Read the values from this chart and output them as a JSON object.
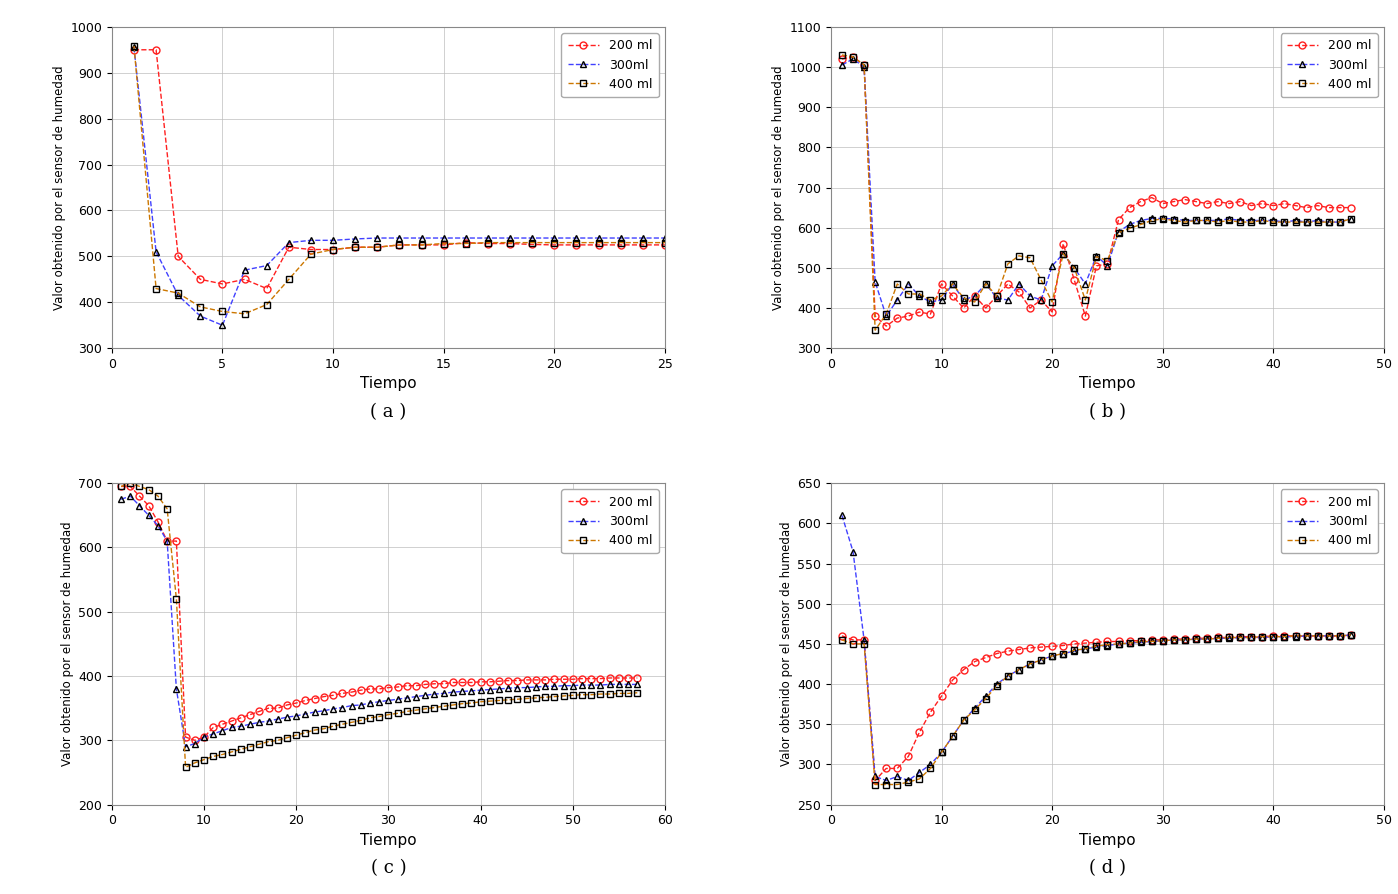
{
  "subplot_a": {
    "title": "( a )",
    "xlabel": "Tiempo",
    "ylabel": "Valor obtenido por el sensor de humedad",
    "xlim": [
      0,
      25
    ],
    "ylim": [
      300,
      1000
    ],
    "yticks": [
      300,
      400,
      500,
      600,
      700,
      800,
      900,
      1000
    ],
    "xticks": [
      0,
      5,
      10,
      15,
      20,
      25
    ],
    "series_200": [
      1,
      2,
      3,
      4,
      5,
      6,
      7,
      8,
      9,
      10,
      11,
      12,
      13,
      14,
      15,
      16,
      17,
      18,
      19,
      20,
      21,
      22,
      23,
      24,
      25
    ],
    "values_200": [
      950,
      950,
      500,
      450,
      440,
      450,
      430,
      520,
      515,
      515,
      520,
      520,
      525,
      525,
      525,
      530,
      528,
      528,
      526,
      525,
      525,
      525,
      525,
      525,
      525
    ],
    "series_300": [
      1,
      2,
      3,
      4,
      5,
      6,
      7,
      8,
      9,
      10,
      11,
      12,
      13,
      14,
      15,
      16,
      17,
      18,
      19,
      20,
      21,
      22,
      23,
      24,
      25
    ],
    "values_300": [
      955,
      510,
      415,
      370,
      350,
      470,
      480,
      530,
      535,
      535,
      538,
      540,
      540,
      540,
      540,
      540,
      540,
      540,
      540,
      540,
      540,
      540,
      540,
      540,
      540
    ],
    "series_400": [
      1,
      2,
      3,
      4,
      5,
      6,
      7,
      8,
      9,
      10,
      11,
      12,
      13,
      14,
      15,
      16,
      17,
      18,
      19,
      20,
      21,
      22,
      23,
      24,
      25
    ],
    "values_400": [
      958,
      430,
      420,
      390,
      380,
      375,
      395,
      450,
      505,
      515,
      520,
      520,
      525,
      525,
      528,
      528,
      530,
      530,
      530,
      530,
      530,
      530,
      530,
      530,
      530
    ],
    "line_color_200": "#FF2020",
    "line_color_300": "#4040FF",
    "line_color_400": "#CC7700",
    "marker_color_200": "#FF2020",
    "marker_color_300": "#000000",
    "marker_color_400": "#000000",
    "marker_200": "o",
    "marker_300": "^",
    "marker_400": "s"
  },
  "subplot_b": {
    "title": "( b )",
    "xlabel": "Tiempo",
    "ylabel": "Valor obtenido por el sensor de humedad",
    "xlim": [
      0,
      50
    ],
    "ylim": [
      300,
      1100
    ],
    "yticks": [
      300,
      400,
      500,
      600,
      700,
      800,
      900,
      1000,
      1100
    ],
    "xticks": [
      0,
      10,
      20,
      30,
      40,
      50
    ],
    "series_200": [
      1,
      2,
      3,
      4,
      5,
      6,
      7,
      8,
      9,
      10,
      11,
      12,
      13,
      14,
      15,
      16,
      17,
      18,
      19,
      20,
      21,
      22,
      23,
      24,
      25,
      26,
      27,
      28,
      29,
      30,
      31,
      32,
      33,
      34,
      35,
      36,
      37,
      38,
      39,
      40,
      41,
      42,
      43,
      44,
      45,
      46,
      47
    ],
    "values_200": [
      1020,
      1025,
      1005,
      380,
      355,
      375,
      380,
      390,
      385,
      460,
      430,
      400,
      430,
      400,
      430,
      460,
      440,
      400,
      420,
      390,
      560,
      470,
      380,
      505,
      510,
      620,
      650,
      665,
      675,
      660,
      665,
      670,
      665,
      660,
      665,
      660,
      665,
      655,
      660,
      655,
      660,
      655,
      650,
      655,
      650,
      650,
      650
    ],
    "series_300": [
      1,
      2,
      3,
      4,
      5,
      6,
      7,
      8,
      9,
      10,
      11,
      12,
      13,
      14,
      15,
      16,
      17,
      18,
      19,
      20,
      21,
      22,
      23,
      24,
      25,
      26,
      27,
      28,
      29,
      30,
      31,
      32,
      33,
      34,
      35,
      36,
      37,
      38,
      39,
      40,
      41,
      42,
      43,
      44,
      45,
      46,
      47
    ],
    "values_300": [
      1005,
      1020,
      1000,
      465,
      380,
      420,
      460,
      430,
      415,
      420,
      460,
      420,
      430,
      460,
      425,
      420,
      460,
      430,
      420,
      505,
      535,
      500,
      460,
      530,
      505,
      590,
      608,
      618,
      623,
      623,
      622,
      618,
      618,
      618,
      618,
      622,
      618,
      618,
      618,
      618,
      614,
      618,
      614,
      618,
      614,
      614,
      622
    ],
    "series_400": [
      1,
      2,
      3,
      4,
      5,
      6,
      7,
      8,
      9,
      10,
      11,
      12,
      13,
      14,
      15,
      16,
      17,
      18,
      19,
      20,
      21,
      22,
      23,
      24,
      25,
      26,
      27,
      28,
      29,
      30,
      31,
      32,
      33,
      34,
      35,
      36,
      37,
      38,
      39,
      40,
      41,
      42,
      43,
      44,
      45,
      46,
      47
    ],
    "values_400": [
      1030,
      1025,
      1005,
      345,
      385,
      460,
      435,
      435,
      420,
      430,
      460,
      425,
      415,
      460,
      430,
      510,
      530,
      525,
      470,
      415,
      535,
      500,
      420,
      528,
      518,
      588,
      598,
      608,
      618,
      622,
      618,
      614,
      618,
      618,
      614,
      618,
      614,
      614,
      618,
      614,
      614,
      614,
      614,
      614,
      614,
      614,
      622
    ],
    "line_color_200": "#FF2020",
    "line_color_300": "#4040FF",
    "line_color_400": "#CC7700",
    "marker_color_200": "#FF2020",
    "marker_color_300": "#000000",
    "marker_color_400": "#000000",
    "marker_200": "o",
    "marker_300": "^",
    "marker_400": "s"
  },
  "subplot_c": {
    "title": "( c )",
    "xlabel": "Tiempo",
    "ylabel": "Valor obtenido por el sensor de humedad",
    "xlim": [
      0,
      60
    ],
    "ylim": [
      200,
      700
    ],
    "yticks": [
      200,
      300,
      400,
      500,
      600,
      700
    ],
    "xticks": [
      0,
      10,
      20,
      30,
      40,
      50,
      60
    ],
    "series_200": [
      1,
      2,
      3,
      4,
      5,
      6,
      7,
      8,
      9,
      10,
      11,
      12,
      13,
      14,
      15,
      16,
      17,
      18,
      19,
      20,
      21,
      22,
      23,
      24,
      25,
      26,
      27,
      28,
      29,
      30,
      31,
      32,
      33,
      34,
      35,
      36,
      37,
      38,
      39,
      40,
      41,
      42,
      43,
      44,
      45,
      46,
      47,
      48,
      49,
      50,
      51,
      52,
      53,
      54,
      55,
      56,
      57
    ],
    "values_200": [
      695,
      695,
      680,
      665,
      640,
      610,
      610,
      305,
      300,
      305,
      320,
      325,
      330,
      335,
      340,
      345,
      350,
      350,
      355,
      358,
      362,
      365,
      368,
      370,
      373,
      375,
      378,
      380,
      380,
      382,
      383,
      385,
      385,
      387,
      388,
      388,
      390,
      390,
      390,
      391,
      391,
      392,
      393,
      393,
      394,
      394,
      394,
      395,
      395,
      395,
      396,
      396,
      396,
      397,
      397,
      397,
      397
    ],
    "series_300": [
      1,
      2,
      3,
      4,
      5,
      6,
      7,
      8,
      9,
      10,
      11,
      12,
      13,
      14,
      15,
      16,
      17,
      18,
      19,
      20,
      21,
      22,
      23,
      24,
      25,
      26,
      27,
      28,
      29,
      30,
      31,
      32,
      33,
      34,
      35,
      36,
      37,
      38,
      39,
      40,
      41,
      42,
      43,
      44,
      45,
      46,
      47,
      48,
      49,
      50,
      51,
      52,
      53,
      54,
      55,
      56,
      57
    ],
    "values_300": [
      675,
      680,
      665,
      650,
      634,
      610,
      380,
      290,
      295,
      305,
      310,
      315,
      320,
      322,
      325,
      328,
      330,
      333,
      336,
      338,
      341,
      344,
      346,
      349,
      351,
      354,
      355,
      358,
      360,
      362,
      364,
      366,
      368,
      370,
      372,
      373,
      375,
      376,
      377,
      378,
      379,
      380,
      381,
      382,
      382,
      383,
      384,
      384,
      385,
      385,
      386,
      386,
      386,
      387,
      387,
      387,
      387
    ],
    "series_400": [
      1,
      2,
      3,
      4,
      5,
      6,
      7,
      8,
      9,
      10,
      11,
      12,
      13,
      14,
      15,
      16,
      17,
      18,
      19,
      20,
      21,
      22,
      23,
      24,
      25,
      26,
      27,
      28,
      29,
      30,
      31,
      32,
      33,
      34,
      35,
      36,
      37,
      38,
      39,
      40,
      41,
      42,
      43,
      44,
      45,
      46,
      47,
      48,
      49,
      50,
      51,
      52,
      53,
      54,
      55,
      56,
      57
    ],
    "values_400": [
      695,
      700,
      695,
      690,
      680,
      660,
      520,
      258,
      265,
      270,
      275,
      278,
      282,
      286,
      290,
      294,
      298,
      300,
      304,
      308,
      312,
      316,
      318,
      322,
      325,
      328,
      331,
      335,
      337,
      340,
      342,
      345,
      347,
      349,
      351,
      353,
      355,
      357,
      358,
      360,
      361,
      362,
      363,
      364,
      365,
      366,
      367,
      368,
      369,
      370,
      371,
      371,
      372,
      372,
      373,
      373,
      374
    ],
    "line_color_200": "#FF2020",
    "line_color_300": "#4040FF",
    "line_color_400": "#CC7700",
    "marker_color_200": "#FF2020",
    "marker_color_300": "#000000",
    "marker_color_400": "#000000",
    "marker_200": "o",
    "marker_300": "^",
    "marker_400": "s"
  },
  "subplot_d": {
    "title": "( d )",
    "xlabel": "Tiempo",
    "ylabel": "Valor obtenido por el sensor de humedad",
    "xlim": [
      0,
      50
    ],
    "ylim": [
      250,
      650
    ],
    "yticks": [
      250,
      300,
      350,
      400,
      450,
      500,
      550,
      600,
      650
    ],
    "xticks": [
      0,
      10,
      20,
      30,
      40,
      50
    ],
    "series_200": [
      1,
      2,
      3,
      4,
      5,
      6,
      7,
      8,
      9,
      10,
      11,
      12,
      13,
      14,
      15,
      16,
      17,
      18,
      19,
      20,
      21,
      22,
      23,
      24,
      25,
      26,
      27,
      28,
      29,
      30,
      31,
      32,
      33,
      34,
      35,
      36,
      37,
      38,
      39,
      40,
      41,
      42,
      43,
      44,
      45,
      46,
      47
    ],
    "values_200": [
      460,
      455,
      455,
      280,
      295,
      295,
      310,
      340,
      365,
      385,
      405,
      418,
      428,
      433,
      438,
      441,
      443,
      445,
      446,
      447,
      448,
      450,
      451,
      452,
      453,
      453,
      454,
      454,
      455,
      455,
      456,
      456,
      457,
      457,
      458,
      458,
      459,
      459,
      459,
      460,
      460,
      460,
      460,
      460,
      460,
      460,
      461
    ],
    "series_300": [
      1,
      2,
      3,
      4,
      5,
      6,
      7,
      8,
      9,
      10,
      11,
      12,
      13,
      14,
      15,
      16,
      17,
      18,
      19,
      20,
      21,
      22,
      23,
      24,
      25,
      26,
      27,
      28,
      29,
      30,
      31,
      32,
      33,
      34,
      35,
      36,
      37,
      38,
      39,
      40,
      41,
      42,
      43,
      44,
      45,
      46,
      47
    ],
    "values_300": [
      610,
      565,
      455,
      285,
      280,
      285,
      280,
      290,
      300,
      315,
      335,
      355,
      370,
      385,
      400,
      410,
      418,
      425,
      430,
      435,
      438,
      441,
      444,
      446,
      448,
      450,
      451,
      452,
      453,
      454,
      455,
      455,
      456,
      456,
      457,
      457,
      458,
      458,
      458,
      459,
      459,
      459,
      460,
      460,
      460,
      460,
      461
    ],
    "series_400": [
      1,
      2,
      3,
      4,
      5,
      6,
      7,
      8,
      9,
      10,
      11,
      12,
      13,
      14,
      15,
      16,
      17,
      18,
      19,
      20,
      21,
      22,
      23,
      24,
      25,
      26,
      27,
      28,
      29,
      30,
      31,
      32,
      33,
      34,
      35,
      36,
      37,
      38,
      39,
      40,
      41,
      42,
      43,
      44,
      45,
      46,
      47
    ],
    "values_400": [
      455,
      450,
      450,
      275,
      275,
      275,
      278,
      282,
      295,
      315,
      335,
      355,
      368,
      382,
      398,
      410,
      418,
      425,
      430,
      435,
      438,
      442,
      444,
      447,
      449,
      450,
      451,
      453,
      453,
      454,
      455,
      455,
      456,
      456,
      457,
      458,
      458,
      458,
      459,
      459,
      459,
      460,
      460,
      460,
      460,
      460,
      461
    ],
    "line_color_200": "#FF2020",
    "line_color_300": "#4040FF",
    "line_color_400": "#CC7700",
    "marker_color_200": "#FF2020",
    "marker_color_300": "#000000",
    "marker_color_400": "#000000",
    "marker_200": "o",
    "marker_300": "^",
    "marker_400": "s"
  },
  "legend_labels": [
    "200 ml",
    "300ml",
    "400 ml"
  ],
  "background_color": "#FFFFFF",
  "grid_color": "#BBBBBB"
}
